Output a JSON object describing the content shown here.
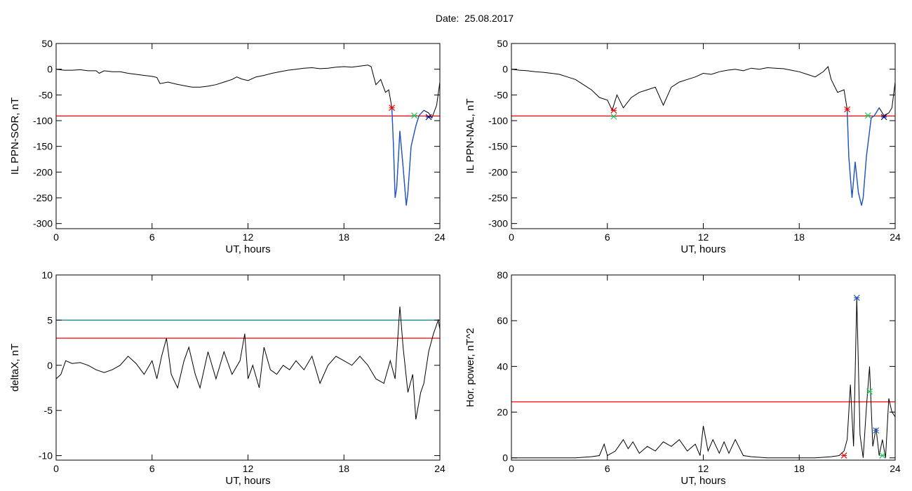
{
  "page": {
    "title": "Date:  25.08.2017"
  },
  "colors": {
    "trace": "#000000",
    "threshold_red": "#ff0000",
    "threshold_teal": "#008b8b",
    "segment_blue": "#1f55c8",
    "marker_red": "#ff0000",
    "marker_green": "#22c55e",
    "marker_blue": "#1f55c8",
    "marker_navy": "#000080"
  },
  "chart_data": [
    {
      "id": "sor",
      "type": "line",
      "xlabel": "UT, hours",
      "ylabel": "IL PPN-SOR, nT",
      "xlim": [
        0,
        24
      ],
      "ylim": [
        -310,
        50
      ],
      "xticks": [
        0,
        6,
        12,
        18,
        24
      ],
      "yticks": [
        50,
        0,
        -50,
        -100,
        -150,
        -200,
        -250,
        -300
      ],
      "thresholds": [
        {
          "value": -91,
          "color": "#ff0000"
        }
      ],
      "x": [
        0,
        0.5,
        1.0,
        1.5,
        2.0,
        2.5,
        2.7,
        3.0,
        3.5,
        4.0,
        4.5,
        5.0,
        5.5,
        6.0,
        6.3,
        6.5,
        7.0,
        7.5,
        8.0,
        8.5,
        9.0,
        9.5,
        10.0,
        10.5,
        11.0,
        11.3,
        11.6,
        12.0,
        12.5,
        13.0,
        13.5,
        14.0,
        14.5,
        15.0,
        15.5,
        16.0,
        16.5,
        17.0,
        17.5,
        18.0,
        18.5,
        19.0,
        19.5,
        19.7,
        20.0,
        20.3,
        20.6,
        20.8,
        21.0,
        21.1,
        21.2,
        21.3,
        21.5,
        21.7,
        21.9,
        22.0,
        22.2,
        22.5,
        22.7,
        23.0,
        23.3,
        23.5,
        23.8,
        24.0
      ],
      "series": [
        {
          "values": [
            0,
            -2,
            -2,
            -1,
            -3,
            -3,
            -8,
            -3,
            -5,
            -5,
            -8,
            -10,
            -12,
            -14,
            -16,
            -28,
            -25,
            -29,
            -32,
            -35,
            -35,
            -33,
            -30,
            -25,
            -20,
            -15,
            -19,
            -22,
            -15,
            -12,
            -8,
            -5,
            -2,
            0,
            2,
            3,
            1,
            2,
            4,
            5,
            4,
            6,
            8,
            5,
            -30,
            -20,
            -45,
            -40,
            -75,
            -150,
            -250,
            -230,
            -120,
            -190,
            -265,
            -240,
            -150,
            -110,
            -90,
            -80,
            -85,
            -95,
            -70,
            -25
          ]
        }
      ],
      "segments": [
        {
          "x_range": [
            21.0,
            23.0
          ],
          "color": "#1f55c8"
        }
      ],
      "markers": [
        {
          "x": 21.0,
          "y": -75,
          "color": "#ff0000"
        },
        {
          "x": 22.4,
          "y": -90,
          "color": "#22c55e"
        },
        {
          "x": 23.3,
          "y": -93,
          "color": "#000080"
        }
      ]
    },
    {
      "id": "nal",
      "type": "line",
      "xlabel": "UT, hours",
      "ylabel": "IL PPN-NAL, nT",
      "xlim": [
        0,
        24
      ],
      "ylim": [
        -310,
        50
      ],
      "xticks": [
        0,
        6,
        12,
        18,
        24
      ],
      "yticks": [
        50,
        0,
        -50,
        -100,
        -150,
        -200,
        -250,
        -300
      ],
      "thresholds": [
        {
          "value": -91,
          "color": "#ff0000"
        }
      ],
      "x": [
        0,
        0.5,
        1.0,
        1.5,
        2.0,
        2.5,
        3.0,
        3.5,
        4.0,
        4.5,
        5.0,
        5.5,
        6.0,
        6.3,
        6.6,
        7.0,
        7.5,
        8.0,
        8.5,
        9.0,
        9.5,
        10.0,
        10.5,
        11.0,
        11.5,
        12.0,
        12.5,
        13.0,
        13.5,
        14.0,
        14.5,
        15.0,
        15.5,
        16.0,
        16.5,
        17.0,
        17.5,
        18.0,
        18.5,
        19.0,
        19.5,
        19.8,
        20.0,
        20.4,
        20.8,
        21.0,
        21.1,
        21.3,
        21.5,
        21.7,
        21.9,
        22.0,
        22.2,
        22.5,
        22.7,
        23.0,
        23.3,
        23.6,
        23.8,
        24.0
      ],
      "series": [
        {
          "values": [
            0,
            -2,
            -3,
            -5,
            -6,
            -8,
            -10,
            -15,
            -20,
            -30,
            -40,
            -55,
            -60,
            -80,
            -50,
            -75,
            -55,
            -45,
            -40,
            -35,
            -70,
            -35,
            -25,
            -20,
            -15,
            -8,
            -10,
            -5,
            -2,
            0,
            -3,
            2,
            0,
            3,
            2,
            1,
            -2,
            -5,
            -10,
            -15,
            -5,
            5,
            -20,
            -45,
            -40,
            -78,
            -170,
            -250,
            -180,
            -240,
            -265,
            -250,
            -170,
            -95,
            -90,
            -75,
            -90,
            -85,
            -75,
            -25
          ]
        }
      ],
      "segments": [
        {
          "x_range": [
            21.0,
            23.0
          ],
          "color": "#1f55c8"
        }
      ],
      "markers": [
        {
          "x": 6.4,
          "y": -80,
          "color": "#ff0000"
        },
        {
          "x": 6.4,
          "y": -92,
          "color": "#22c55e"
        },
        {
          "x": 21.0,
          "y": -78,
          "color": "#ff0000"
        },
        {
          "x": 22.3,
          "y": -90,
          "color": "#22c55e"
        },
        {
          "x": 23.3,
          "y": -93,
          "color": "#000080"
        }
      ]
    },
    {
      "id": "deltax",
      "type": "line",
      "xlabel": "UT, hours",
      "ylabel": "deltaX, nT",
      "xlim": [
        0,
        24
      ],
      "ylim": [
        -10.5,
        10
      ],
      "xticks": [
        0,
        6,
        12,
        18,
        24
      ],
      "yticks": [
        10,
        5,
        0,
        -5,
        -10
      ],
      "thresholds": [
        {
          "value": 5,
          "color": "#008b8b"
        },
        {
          "value": 3,
          "color": "#ff0000"
        }
      ],
      "x": [
        0,
        0.3,
        0.6,
        1.0,
        1.5,
        2.0,
        2.5,
        3.0,
        3.5,
        4.0,
        4.5,
        5.0,
        5.5,
        6.0,
        6.3,
        6.6,
        6.9,
        7.2,
        7.6,
        8.0,
        8.3,
        8.7,
        9.0,
        9.5,
        10.0,
        10.5,
        11.0,
        11.5,
        11.8,
        12.0,
        12.3,
        12.7,
        13.0,
        13.4,
        13.8,
        14.2,
        14.6,
        15.0,
        15.5,
        16.0,
        16.5,
        17.0,
        17.5,
        18.0,
        18.5,
        19.0,
        19.5,
        20.0,
        20.5,
        20.9,
        21.2,
        21.5,
        21.7,
        22.0,
        22.3,
        22.5,
        22.8,
        23.0,
        23.3,
        23.6,
        23.9,
        24.0
      ],
      "series": [
        {
          "values": [
            -1.5,
            -1.0,
            0.5,
            0.2,
            0.3,
            0.0,
            -0.5,
            -0.8,
            -0.5,
            0.0,
            1.0,
            0.2,
            -1.0,
            0.5,
            -1.5,
            1.0,
            3.0,
            -1.0,
            -2.5,
            0.5,
            2.0,
            -1.0,
            -2.5,
            1.5,
            -1.5,
            1.5,
            -1.0,
            0.5,
            3.5,
            -1.5,
            0.0,
            -2.5,
            2.0,
            -0.5,
            -1.0,
            0.0,
            -0.5,
            0.5,
            -0.5,
            1.0,
            -2.0,
            0.0,
            1.0,
            0.5,
            0.0,
            1.0,
            0.0,
            -1.5,
            -2.0,
            0.5,
            -1.5,
            6.5,
            2.0,
            -3.0,
            -1.0,
            -6.0,
            -3.0,
            -2.0,
            1.5,
            3.5,
            5.0,
            4.0
          ]
        }
      ],
      "markers": []
    },
    {
      "id": "power",
      "type": "line",
      "xlabel": "UT, hours",
      "ylabel": "Hor. power, nT^2",
      "xlim": [
        0,
        24
      ],
      "ylim": [
        -1,
        80
      ],
      "xticks": [
        0,
        6,
        12,
        18,
        24
      ],
      "yticks": [
        80,
        60,
        40,
        20,
        0
      ],
      "thresholds": [
        {
          "value": 24.5,
          "color": "#ff0000"
        }
      ],
      "x": [
        0,
        1.0,
        2.0,
        3.0,
        4.0,
        5.0,
        5.5,
        5.8,
        6.0,
        6.5,
        7.0,
        7.3,
        7.6,
        8.0,
        8.5,
        9.0,
        9.5,
        10.0,
        10.5,
        11.0,
        11.5,
        11.8,
        12.0,
        12.3,
        12.6,
        13.0,
        13.3,
        13.6,
        14.0,
        14.5,
        15.0,
        16.0,
        17.0,
        18.0,
        19.0,
        20.0,
        20.5,
        20.8,
        21.0,
        21.2,
        21.4,
        21.6,
        21.8,
        22.0,
        22.2,
        22.4,
        22.6,
        22.8,
        23.0,
        23.2,
        23.4,
        23.6,
        23.8,
        24.0
      ],
      "series": [
        {
          "values": [
            0,
            0,
            0,
            0,
            0,
            0.5,
            1,
            6,
            1,
            3,
            8,
            4,
            7,
            2,
            5,
            3,
            7,
            5,
            8,
            3,
            6,
            1,
            14,
            3,
            8,
            2,
            7,
            2,
            8,
            1,
            0.5,
            0,
            0,
            0,
            0,
            0.5,
            1,
            3,
            8,
            32,
            5,
            70,
            10,
            0,
            22,
            40,
            5,
            13,
            1,
            8,
            0,
            26,
            20,
            18
          ]
        }
      ],
      "markers": [
        {
          "x": 20.8,
          "y": 1,
          "color": "#ff0000"
        },
        {
          "x": 21.6,
          "y": 70,
          "color": "#1f55c8"
        },
        {
          "x": 22.4,
          "y": 29,
          "color": "#22c55e"
        },
        {
          "x": 22.8,
          "y": 12,
          "color": "#1f55c8"
        },
        {
          "x": 23.2,
          "y": 1,
          "color": "#22c55e"
        }
      ]
    }
  ]
}
